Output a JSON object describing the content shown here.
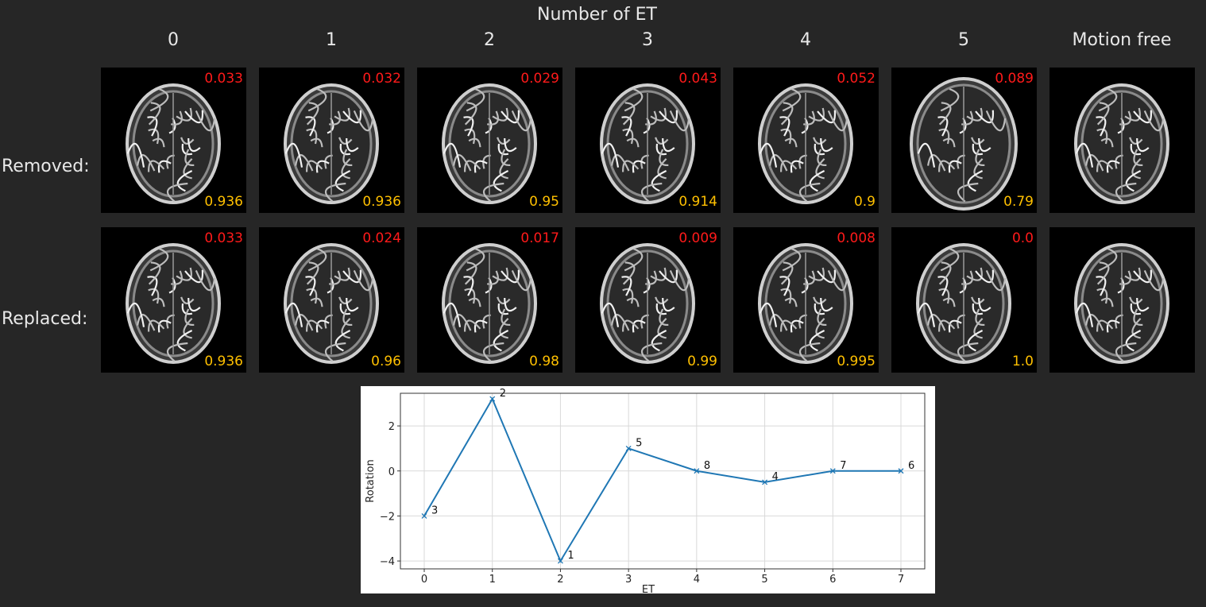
{
  "figure": {
    "heading": "Number of ET",
    "columns": [
      "0",
      "1",
      "2",
      "3",
      "4",
      "5",
      "Motion free"
    ],
    "rows": [
      {
        "label": "Removed:",
        "red_values": [
          "0.033",
          "0.032",
          "0.029",
          "0.043",
          "0.052",
          "0.089",
          ""
        ],
        "yellow_values": [
          "0.936",
          "0.936",
          "0.95",
          "0.914",
          "0.9",
          "0.79",
          ""
        ]
      },
      {
        "label": "Replaced:",
        "red_values": [
          "0.033",
          "0.024",
          "0.017",
          "0.009",
          "0.008",
          "0.0",
          ""
        ],
        "yellow_values": [
          "0.936",
          "0.96",
          "0.98",
          "0.99",
          "0.995",
          "1.0",
          ""
        ]
      }
    ],
    "colors": {
      "red_metric": "#ff1a1a",
      "yellow_metric": "#ffc000",
      "line": "#1f77b4"
    }
  },
  "chart_data": {
    "type": "line",
    "x": [
      0,
      1,
      2,
      3,
      4,
      5,
      6,
      7
    ],
    "y": [
      -2,
      3.2,
      -4,
      1,
      0,
      -0.5,
      0,
      0
    ],
    "point_labels": [
      "3",
      "2",
      "1",
      "5",
      "8",
      "4",
      "7",
      "6"
    ],
    "xlabel": "ET",
    "ylabel": "Rotation",
    "xlim": [
      -0.35,
      7.35
    ],
    "ylim": [
      -4.35,
      3.45
    ],
    "xticks": [
      0,
      1,
      2,
      3,
      4,
      5,
      6,
      7
    ],
    "yticks": [
      -4,
      -2,
      0,
      2
    ],
    "ytick_labels": [
      "−4",
      "−2",
      "0",
      "2"
    ],
    "grid": true
  }
}
